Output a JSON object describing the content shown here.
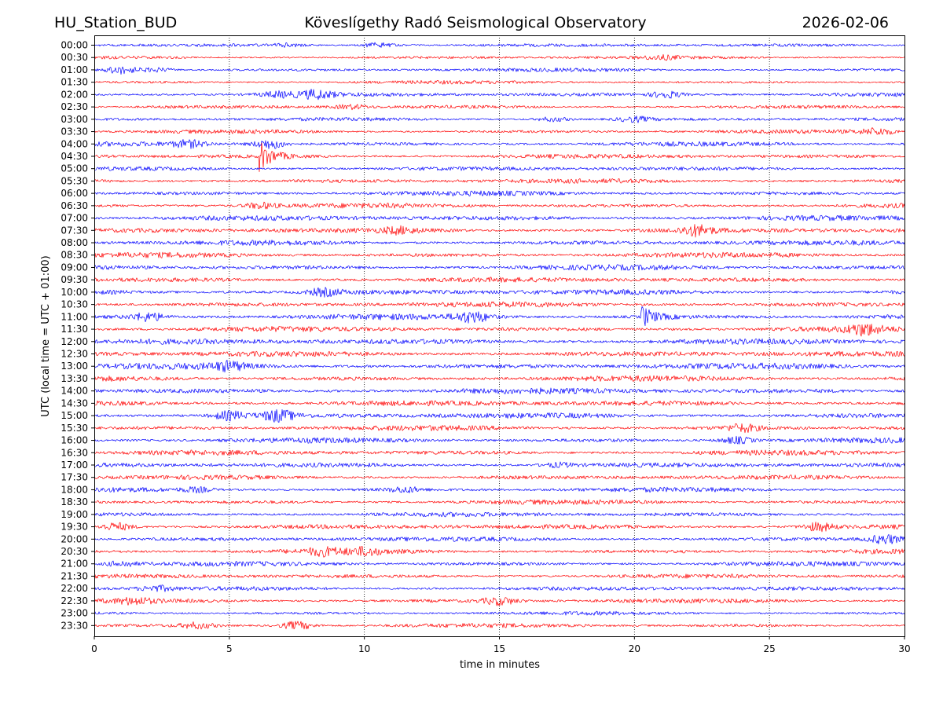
{
  "header": {
    "station": "HU_Station_BUD",
    "observatory": "Köveslígethy Radó Seismological Observatory",
    "date": "2026-02-06"
  },
  "chart_data": {
    "type": "line",
    "title": "Köveslígethy Radó Seismological Observatory",
    "xlabel": "time in minutes",
    "ylabel": "UTC (local time = UTC + 01:00)",
    "xlim": [
      0,
      30
    ],
    "x_ticks": [
      "0",
      "5",
      "10",
      "15",
      "20",
      "25",
      "30"
    ],
    "grid": "vertical dotted lines at x ticks",
    "trace_colors": [
      "#0000ff",
      "#ff0000"
    ],
    "rows": [
      "00:00",
      "00:30",
      "01:00",
      "01:30",
      "02:00",
      "02:30",
      "03:00",
      "03:30",
      "04:00",
      "04:30",
      "05:00",
      "05:30",
      "06:00",
      "06:30",
      "07:00",
      "07:30",
      "08:00",
      "08:30",
      "09:00",
      "09:30",
      "10:00",
      "10:30",
      "11:00",
      "11:30",
      "12:00",
      "12:30",
      "13:00",
      "13:30",
      "14:00",
      "14:30",
      "15:00",
      "15:30",
      "16:00",
      "16:30",
      "17:00",
      "17:30",
      "18:00",
      "18:30",
      "19:00",
      "19:30",
      "20:00",
      "20:30",
      "21:00",
      "21:30",
      "22:00",
      "22:30",
      "23:00",
      "23:30"
    ],
    "noise_level": [
      0.25,
      0.2,
      0.3,
      0.25,
      0.4,
      0.3,
      0.3,
      0.35,
      0.45,
      0.45,
      0.45,
      0.5,
      0.55,
      0.55,
      0.65,
      0.6,
      0.6,
      0.6,
      0.65,
      0.6,
      0.7,
      0.65,
      0.7,
      0.65,
      0.75,
      0.7,
      0.8,
      0.7,
      0.75,
      0.7,
      0.7,
      0.6,
      0.6,
      0.6,
      0.55,
      0.5,
      0.5,
      0.5,
      0.5,
      0.55,
      0.5,
      0.55,
      0.5,
      0.45,
      0.45,
      0.45,
      0.3,
      0.4
    ],
    "events": [
      {
        "row": "00:00",
        "minute": 10.5,
        "amplitude": 1.1
      },
      {
        "row": "00:00",
        "minute": 7.2,
        "amplitude": 0.8
      },
      {
        "row": "00:30",
        "minute": 21.0,
        "amplitude": 0.9
      },
      {
        "row": "01:00",
        "minute": 1.0,
        "amplitude": 1.8
      },
      {
        "row": "01:00",
        "minute": 2.3,
        "amplitude": 0.9
      },
      {
        "row": "02:00",
        "minute": 8.2,
        "amplitude": 1.6
      },
      {
        "row": "02:00",
        "minute": 21.2,
        "amplitude": 1.4
      },
      {
        "row": "02:00",
        "minute": 6.8,
        "amplitude": 1.0
      },
      {
        "row": "02:30",
        "minute": 9.5,
        "amplitude": 0.9
      },
      {
        "row": "03:00",
        "minute": 17.0,
        "amplitude": 1.0
      },
      {
        "row": "03:00",
        "minute": 20.0,
        "amplitude": 1.1
      },
      {
        "row": "03:30",
        "minute": 29.0,
        "amplitude": 1.3
      },
      {
        "row": "04:00",
        "minute": 3.5,
        "amplitude": 1.2
      },
      {
        "row": "04:00",
        "minute": 6.5,
        "amplitude": 1.8
      },
      {
        "row": "04:30",
        "minute": 6.15,
        "amplitude": 5.5
      },
      {
        "row": "06:30",
        "minute": 6.15,
        "amplitude": 1.0
      },
      {
        "row": "07:30",
        "minute": 22.3,
        "amplitude": 1.6
      },
      {
        "row": "07:30",
        "minute": 11.3,
        "amplitude": 0.9
      },
      {
        "row": "10:00",
        "minute": 8.5,
        "amplitude": 1.0
      },
      {
        "row": "11:00",
        "minute": 14.0,
        "amplitude": 1.5
      },
      {
        "row": "11:00",
        "minute": 20.3,
        "amplitude": 3.2
      },
      {
        "row": "11:00",
        "minute": 2.0,
        "amplitude": 1.2
      },
      {
        "row": "11:30",
        "minute": 28.5,
        "amplitude": 1.5
      },
      {
        "row": "13:00",
        "minute": 5.0,
        "amplitude": 1.0
      },
      {
        "row": "15:00",
        "minute": 6.8,
        "amplitude": 1.6
      },
      {
        "row": "15:00",
        "minute": 5.0,
        "amplitude": 1.2
      },
      {
        "row": "15:30",
        "minute": 24.0,
        "amplitude": 1.2
      },
      {
        "row": "16:00",
        "minute": 23.8,
        "amplitude": 1.1
      },
      {
        "row": "17:00",
        "minute": 17.2,
        "amplitude": 0.8
      },
      {
        "row": "18:00",
        "minute": 11.5,
        "amplitude": 0.9
      },
      {
        "row": "18:00",
        "minute": 3.8,
        "amplitude": 0.8
      },
      {
        "row": "19:30",
        "minute": 0.8,
        "amplitude": 1.3
      },
      {
        "row": "19:30",
        "minute": 26.8,
        "amplitude": 1.4
      },
      {
        "row": "20:00",
        "minute": 29.3,
        "amplitude": 1.6
      },
      {
        "row": "20:30",
        "minute": 8.5,
        "amplitude": 1.1
      },
      {
        "row": "20:30",
        "minute": 10.0,
        "amplitude": 1.0
      },
      {
        "row": "21:00",
        "minute": 1.0,
        "amplitude": 1.0
      },
      {
        "row": "22:00",
        "minute": 2.3,
        "amplitude": 0.9
      },
      {
        "row": "22:30",
        "minute": 15.0,
        "amplitude": 1.4
      },
      {
        "row": "22:30",
        "minute": 1.5,
        "amplitude": 1.0
      },
      {
        "row": "23:30",
        "minute": 7.5,
        "amplitude": 1.6
      },
      {
        "row": "23:30",
        "minute": 3.8,
        "amplitude": 1.1
      }
    ]
  }
}
